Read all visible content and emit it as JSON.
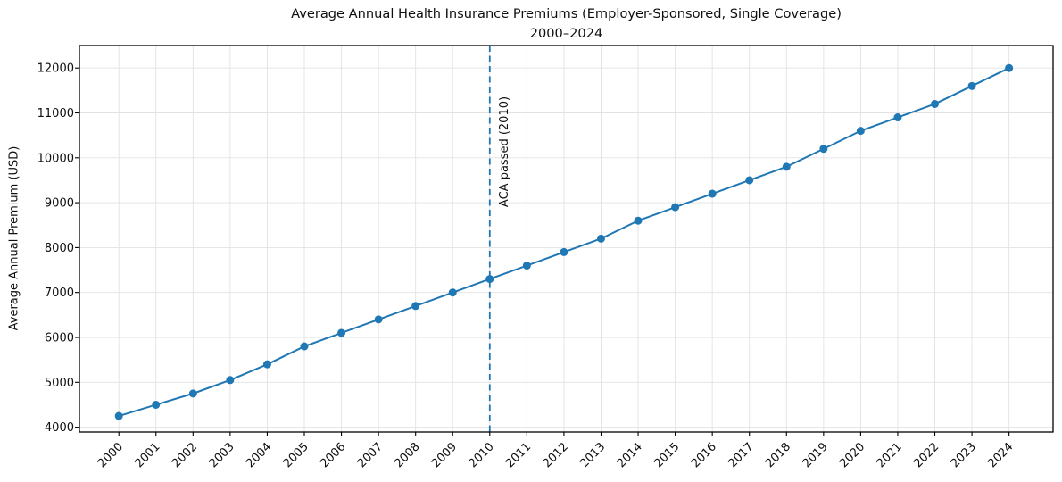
{
  "title": {
    "line1": "Average Annual Health Insurance Premiums (Employer-Sponsored, Single Coverage)",
    "line2": "2000–2024"
  },
  "chart_data": {
    "type": "line",
    "title": "Average Annual Health Insurance Premiums (Employer-Sponsored, Single Coverage)",
    "subtitle": "2000–2024",
    "xlabel": "",
    "ylabel": "Average Annual Premium (USD)",
    "x": [
      2000,
      2001,
      2002,
      2003,
      2004,
      2005,
      2006,
      2007,
      2008,
      2009,
      2010,
      2011,
      2012,
      2013,
      2014,
      2015,
      2016,
      2017,
      2018,
      2019,
      2020,
      2021,
      2022,
      2023,
      2024
    ],
    "series": [
      {
        "name": "Average Annual Premium (USD)",
        "color": "#1f77b4",
        "marker": "circle",
        "values": [
          4250,
          4500,
          4750,
          5050,
          5400,
          5800,
          6100,
          6400,
          6700,
          7000,
          7300,
          7600,
          7900,
          8200,
          8600,
          8900,
          9200,
          9500,
          9800,
          10200,
          10600,
          10900,
          11200,
          11600,
          12000
        ]
      }
    ],
    "yticks": [
      4000,
      5000,
      6000,
      7000,
      8000,
      9000,
      10000,
      11000,
      12000
    ],
    "ylim": [
      3890,
      12500
    ],
    "xlim": [
      1998.9,
      2025.2
    ],
    "grid": true,
    "grid_color": "#e2e2e2",
    "legend": "none",
    "annotation": {
      "label": "ACA passed (2010)",
      "x": 2010,
      "line_style": "dashed",
      "line_color": "#1f77b4",
      "text_color": "#0f0f0f"
    }
  }
}
